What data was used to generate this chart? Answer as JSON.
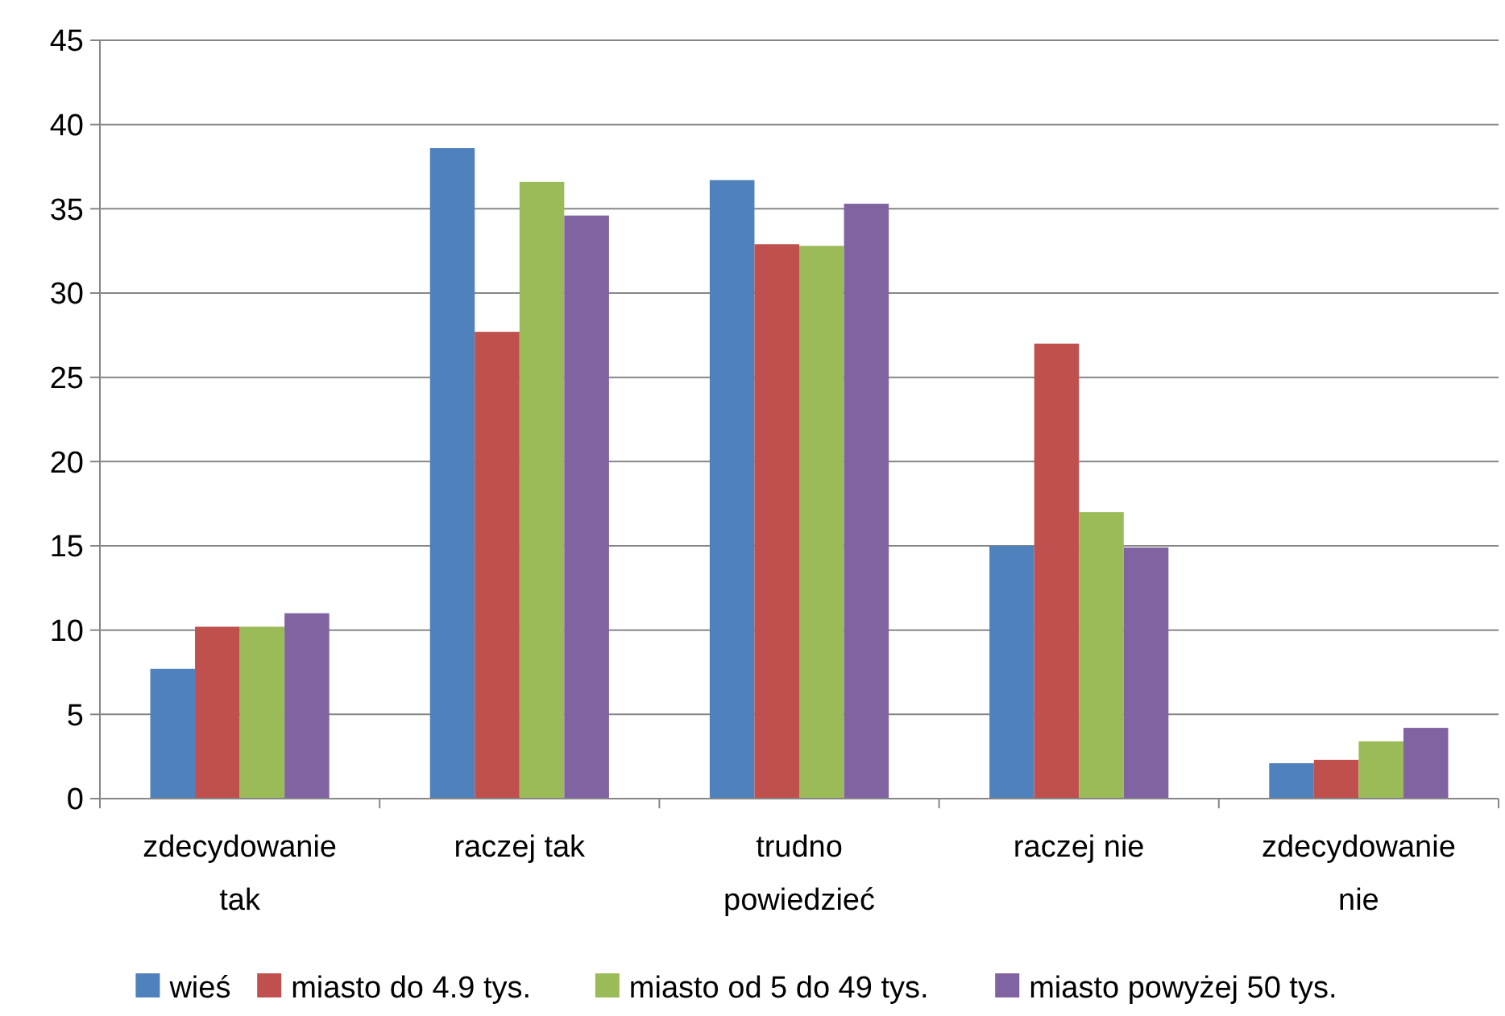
{
  "chart_data": {
    "type": "bar",
    "categories": [
      "zdecydowanie tak",
      "raczej tak",
      "trudno powiedzieć",
      "raczej nie",
      "zdecydowanie nie"
    ],
    "series": [
      {
        "name": "wieś",
        "color": "#4f81bd",
        "values": [
          7.7,
          38.6,
          36.7,
          15.0,
          2.1
        ]
      },
      {
        "name": "miasto do 4.9 tys.",
        "color": "#c0504d",
        "values": [
          10.2,
          27.7,
          32.9,
          27.0,
          2.3
        ]
      },
      {
        "name": "miasto od 5 do 49 tys.",
        "color": "#9bbb59",
        "values": [
          10.2,
          36.6,
          32.8,
          17.0,
          3.4
        ]
      },
      {
        "name": "miasto powyżej 50 tys.",
        "color": "#8064a2",
        "values": [
          11.0,
          34.6,
          35.3,
          14.9,
          4.2
        ]
      }
    ],
    "ylim": [
      0,
      45
    ],
    "yticks": [
      0,
      5,
      10,
      15,
      20,
      25,
      30,
      35,
      40,
      45
    ],
    "grid": "y",
    "legend": "bottom"
  }
}
